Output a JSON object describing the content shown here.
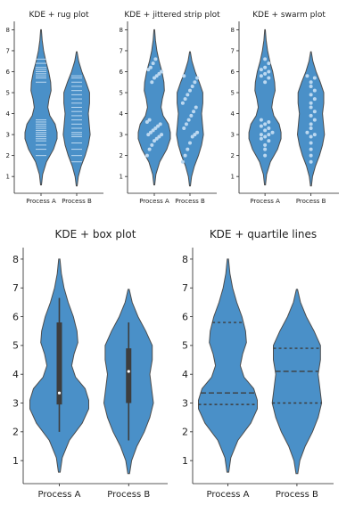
{
  "chart_data": [
    {
      "type": "violin",
      "title": "KDE + rug plot",
      "inner": "rug",
      "categories": [
        "Process A",
        "Process B"
      ],
      "yticks": [
        1,
        2,
        3,
        4,
        5,
        6,
        7,
        8
      ],
      "ylim": [
        0.2,
        8.4
      ],
      "violins": [
        {
          "category": "Process A",
          "min": 0.6,
          "max": 8.0,
          "points": [
            2.0,
            2.3,
            2.5,
            2.7,
            2.8,
            2.9,
            3.0,
            3.0,
            3.1,
            3.2,
            3.3,
            3.4,
            3.5,
            3.6,
            3.7,
            5.5,
            5.7,
            5.8,
            5.9,
            6.0,
            6.1,
            6.2,
            6.4,
            6.6
          ]
        },
        {
          "category": "Process B",
          "min": 0.55,
          "max": 6.95,
          "points": [
            1.7,
            2.0,
            2.3,
            2.6,
            2.9,
            3.0,
            3.1,
            3.3,
            3.5,
            3.7,
            3.9,
            4.1,
            4.3,
            4.5,
            4.7,
            4.9,
            5.1,
            5.3,
            5.5,
            5.7,
            5.8
          ]
        }
      ]
    },
    {
      "type": "violin",
      "title": "KDE + jittered strip plot",
      "inner": "strip",
      "categories": [
        "Process A",
        "Process B"
      ],
      "yticks": [
        1,
        2,
        3,
        4,
        5,
        6,
        7,
        8
      ],
      "ylim": [
        0.2,
        8.4
      ],
      "violins": [
        {
          "category": "Process A",
          "min": 0.6,
          "max": 8.0,
          "points": [
            2.0,
            2.3,
            2.5,
            2.7,
            2.8,
            2.9,
            3.0,
            3.0,
            3.1,
            3.2,
            3.3,
            3.4,
            3.5,
            3.6,
            3.7,
            5.5,
            5.7,
            5.8,
            5.9,
            6.0,
            6.1,
            6.2,
            6.4,
            6.6
          ]
        },
        {
          "category": "Process B",
          "min": 0.55,
          "max": 6.95,
          "points": [
            1.7,
            2.0,
            2.3,
            2.6,
            2.9,
            3.0,
            3.1,
            3.3,
            3.5,
            3.7,
            3.9,
            4.1,
            4.3,
            4.5,
            4.7,
            4.9,
            5.1,
            5.3,
            5.5,
            5.7,
            5.8
          ]
        }
      ]
    },
    {
      "type": "violin",
      "title": "KDE + swarm plot",
      "inner": "swarm",
      "categories": [
        "Process A",
        "Process B"
      ],
      "yticks": [
        1,
        2,
        3,
        4,
        5,
        6,
        7,
        8
      ],
      "ylim": [
        0.2,
        8.4
      ],
      "violins": [
        {
          "category": "Process A",
          "min": 0.6,
          "max": 8.0,
          "points": [
            2.0,
            2.3,
            2.5,
            2.7,
            2.8,
            2.9,
            3.0,
            3.0,
            3.1,
            3.2,
            3.3,
            3.4,
            3.5,
            3.6,
            3.7,
            5.5,
            5.7,
            5.8,
            5.9,
            6.0,
            6.1,
            6.2,
            6.4,
            6.6
          ]
        },
        {
          "category": "Process B",
          "min": 0.55,
          "max": 6.95,
          "points": [
            1.7,
            2.0,
            2.3,
            2.6,
            2.9,
            3.0,
            3.1,
            3.3,
            3.5,
            3.7,
            3.9,
            4.1,
            4.3,
            4.5,
            4.7,
            4.9,
            5.1,
            5.3,
            5.5,
            5.7,
            5.8
          ]
        }
      ]
    },
    {
      "type": "violin",
      "title": "KDE + box plot",
      "inner": "box",
      "categories": [
        "Process A",
        "Process B"
      ],
      "yticks": [
        1,
        2,
        3,
        4,
        5,
        6,
        7,
        8
      ],
      "ylim": [
        0.2,
        8.4
      ],
      "violins": [
        {
          "category": "Process A",
          "min": 0.6,
          "max": 8.0,
          "box": {
            "whisker_low": 2.0,
            "q1": 2.95,
            "median": 3.35,
            "q3": 5.8,
            "whisker_high": 6.65
          }
        },
        {
          "category": "Process B",
          "min": 0.55,
          "max": 6.95,
          "box": {
            "whisker_low": 1.7,
            "q1": 3.0,
            "median": 4.1,
            "q3": 4.9,
            "whisker_high": 5.8
          }
        }
      ]
    },
    {
      "type": "violin",
      "title": "KDE + quartile lines",
      "inner": "quartiles",
      "categories": [
        "Process A",
        "Process B"
      ],
      "yticks": [
        1,
        2,
        3,
        4,
        5,
        6,
        7,
        8
      ],
      "ylim": [
        0.2,
        8.4
      ],
      "violins": [
        {
          "category": "Process A",
          "min": 0.6,
          "max": 8.0,
          "quartiles": [
            2.95,
            3.35,
            5.8
          ]
        },
        {
          "category": "Process B",
          "min": 0.55,
          "max": 6.95,
          "quartiles": [
            3.0,
            4.1,
            4.9
          ]
        }
      ]
    }
  ],
  "colors": {
    "violin_fill": "#4a90c8",
    "violin_edge": "#4d4d4d",
    "marker": "#bcd8f0",
    "box": "#3d3d3d",
    "median": "#ffffff",
    "axis": "#222222"
  }
}
